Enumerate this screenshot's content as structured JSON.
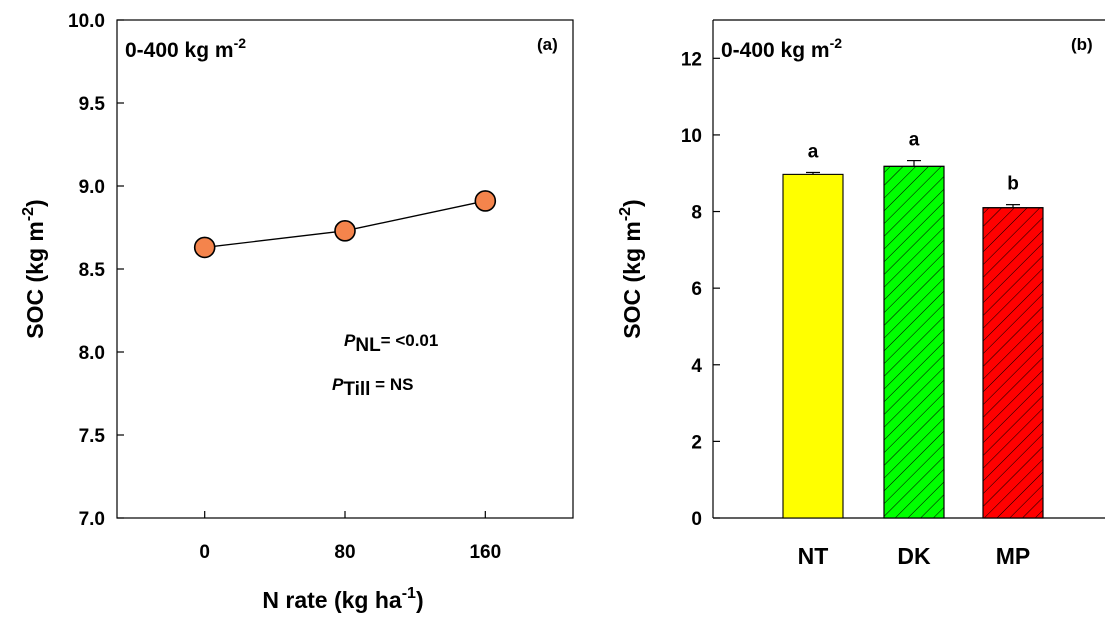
{
  "chart_data": [
    {
      "type": "line",
      "panel_label": "(a)",
      "depth_label": {
        "main": "0-400 kg m",
        "sup": "-2"
      },
      "xlabel": {
        "main": "N rate (kg ha",
        "sup": "-1",
        "tail": ")"
      },
      "ylabel": {
        "main": "SOC (kg m",
        "sup": "-2",
        "tail": ")"
      },
      "x": [
        0,
        80,
        160
      ],
      "x_tick_labels": [
        "0",
        "80",
        "160"
      ],
      "xlim": [
        -50,
        210
      ],
      "values": [
        8.63,
        8.73,
        8.91
      ],
      "ylim": [
        7.0,
        10.0
      ],
      "y_ticks": [
        "7.0",
        "7.5",
        "8.0",
        "8.5",
        "9.0",
        "9.5",
        "10.0"
      ],
      "marker_color": "#f4844c",
      "annotations": [
        {
          "italic": "P",
          "sub": "NL",
          "rest": "= <0.01"
        },
        {
          "italic": "P",
          "sub": "Till",
          "rest": " = NS"
        }
      ]
    },
    {
      "type": "bar",
      "panel_label": "(b)",
      "depth_label": {
        "main": "0-400 kg m",
        "sup": "-2"
      },
      "ylabel": {
        "main": "SOC (kg m",
        "sup": "-2",
        "tail": ")"
      },
      "categories": [
        "NT",
        "DK",
        "MP"
      ],
      "values": [
        8.97,
        9.18,
        8.1
      ],
      "errors": [
        0.05,
        0.15,
        0.08
      ],
      "letters": [
        "a",
        "a",
        "b"
      ],
      "colors": [
        "#ffff00",
        "#00ff00",
        "#ff0000"
      ],
      "hatched": [
        false,
        true,
        true
      ],
      "ylim": [
        0,
        13
      ],
      "y_ticks": [
        "0",
        "2",
        "4",
        "6",
        "8",
        "10",
        "12"
      ]
    }
  ]
}
